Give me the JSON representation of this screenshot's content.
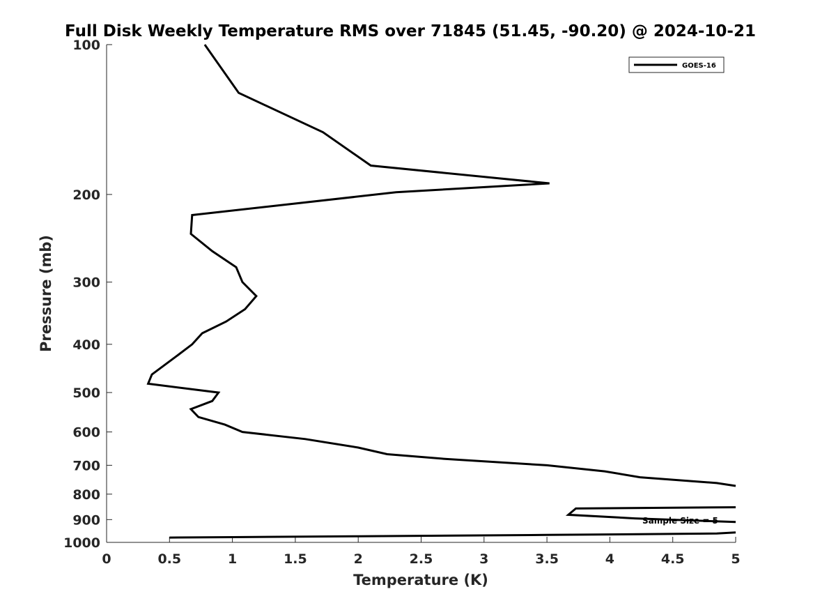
{
  "chart_data": {
    "type": "line",
    "title": "Full Disk Weekly Temperature RMS over 71845 (51.45, -90.20) @ 2024-10-21",
    "xlabel": "Temperature (K)",
    "ylabel": "Pressure (mb)",
    "xlim": [
      0,
      5
    ],
    "ylim": [
      100,
      1000
    ],
    "y_scale": "log",
    "y_reversed": true,
    "grid": false,
    "legend_position": "top-right",
    "x_ticks": [
      0,
      0.5,
      1,
      1.5,
      2,
      2.5,
      3,
      3.5,
      4,
      4.5,
      5
    ],
    "x_tick_labels": [
      "0",
      "0.5",
      "1",
      "1.5",
      "2",
      "2.5",
      "3",
      "3.5",
      "4",
      "4.5",
      "5"
    ],
    "y_ticks": [
      100,
      200,
      300,
      400,
      500,
      600,
      700,
      800,
      900,
      1000
    ],
    "y_tick_labels": [
      "100",
      "200",
      "300",
      "400",
      "500",
      "600",
      "700",
      "800",
      "900",
      "1000"
    ],
    "series": [
      {
        "name": "GOES-16",
        "color": "#000000",
        "points": [
          [
            0.78,
            100
          ],
          [
            1.05,
            125
          ],
          [
            1.72,
            150
          ],
          [
            2.1,
            175
          ],
          [
            3.52,
            190
          ],
          [
            2.3,
            198
          ],
          [
            0.68,
            220
          ],
          [
            0.67,
            240
          ],
          [
            0.84,
            260
          ],
          [
            1.03,
            280
          ],
          [
            1.08,
            300
          ],
          [
            1.19,
            320
          ],
          [
            1.1,
            340
          ],
          [
            0.95,
            360
          ],
          [
            0.76,
            380
          ],
          [
            0.68,
            400
          ],
          [
            0.57,
            420
          ],
          [
            0.36,
            460
          ],
          [
            0.33,
            480
          ],
          [
            0.89,
            500
          ],
          [
            0.84,
            520
          ],
          [
            0.67,
            540
          ],
          [
            0.73,
            560
          ],
          [
            0.94,
            580
          ],
          [
            1.08,
            600
          ],
          [
            1.58,
            620
          ],
          [
            2.0,
            645
          ],
          [
            2.23,
            665
          ],
          [
            2.7,
            680
          ],
          [
            3.5,
            700
          ],
          [
            3.96,
            720
          ],
          [
            4.24,
            740
          ],
          [
            4.85,
            760
          ],
          [
            5.0,
            770
          ]
        ],
        "segments": [
          [
            [
              5.0,
              850
            ],
            [
              3.73,
              855
            ],
            [
              3.67,
              880
            ],
            [
              4.2,
              895
            ],
            [
              5.0,
              910
            ]
          ],
          [
            [
              5.0,
              955
            ],
            [
              4.85,
              960
            ],
            [
              3.5,
              966
            ],
            [
              2.0,
              972
            ],
            [
              1.0,
              976
            ],
            [
              0.5,
              978
            ]
          ]
        ]
      }
    ],
    "annotations": [
      "Sample Size = 5"
    ]
  }
}
